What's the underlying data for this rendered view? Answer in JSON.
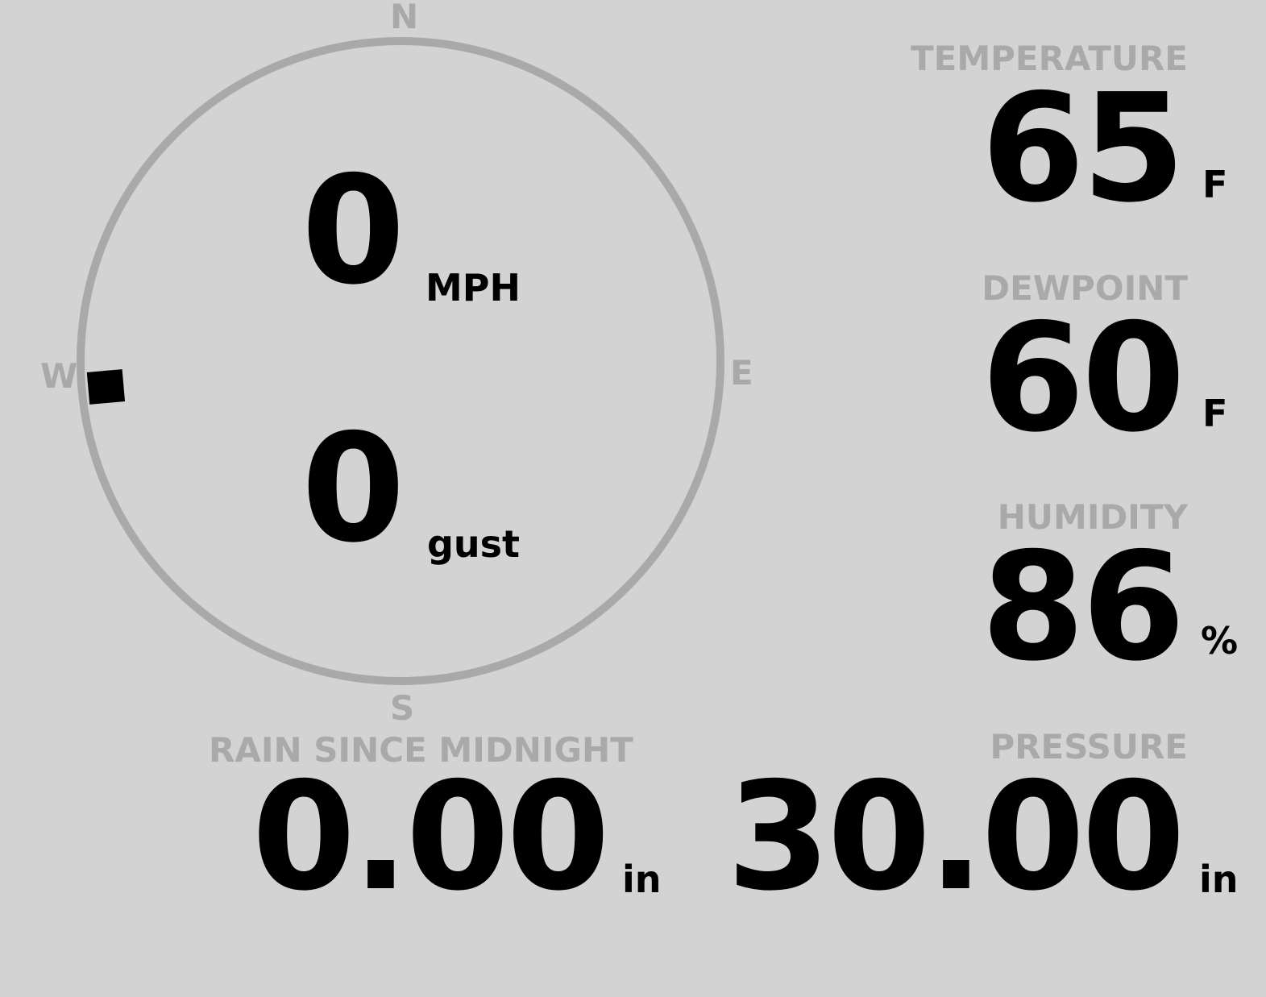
{
  "wind": {
    "speed": "0",
    "speed_unit": "MPH",
    "gust": "0",
    "gust_unit": "gust",
    "direction_deg": 265,
    "cardinals": {
      "n": "N",
      "e": "E",
      "s": "S",
      "w": "W"
    }
  },
  "temperature": {
    "label": "TEMPERATURE",
    "value": "65",
    "unit": "F"
  },
  "dewpoint": {
    "label": "DEWPOINT",
    "value": "60",
    "unit": "F"
  },
  "humidity": {
    "label": "HUMIDITY",
    "value": "86",
    "unit": "%"
  },
  "rain": {
    "label": "RAIN SINCE MIDNIGHT",
    "value": "0.00",
    "unit": "in"
  },
  "pressure": {
    "label": "PRESSURE",
    "value": "30.00",
    "unit": "in"
  },
  "colors": {
    "background": "#d3d3d3",
    "label": "#a9a9a9",
    "value": "#000000"
  }
}
